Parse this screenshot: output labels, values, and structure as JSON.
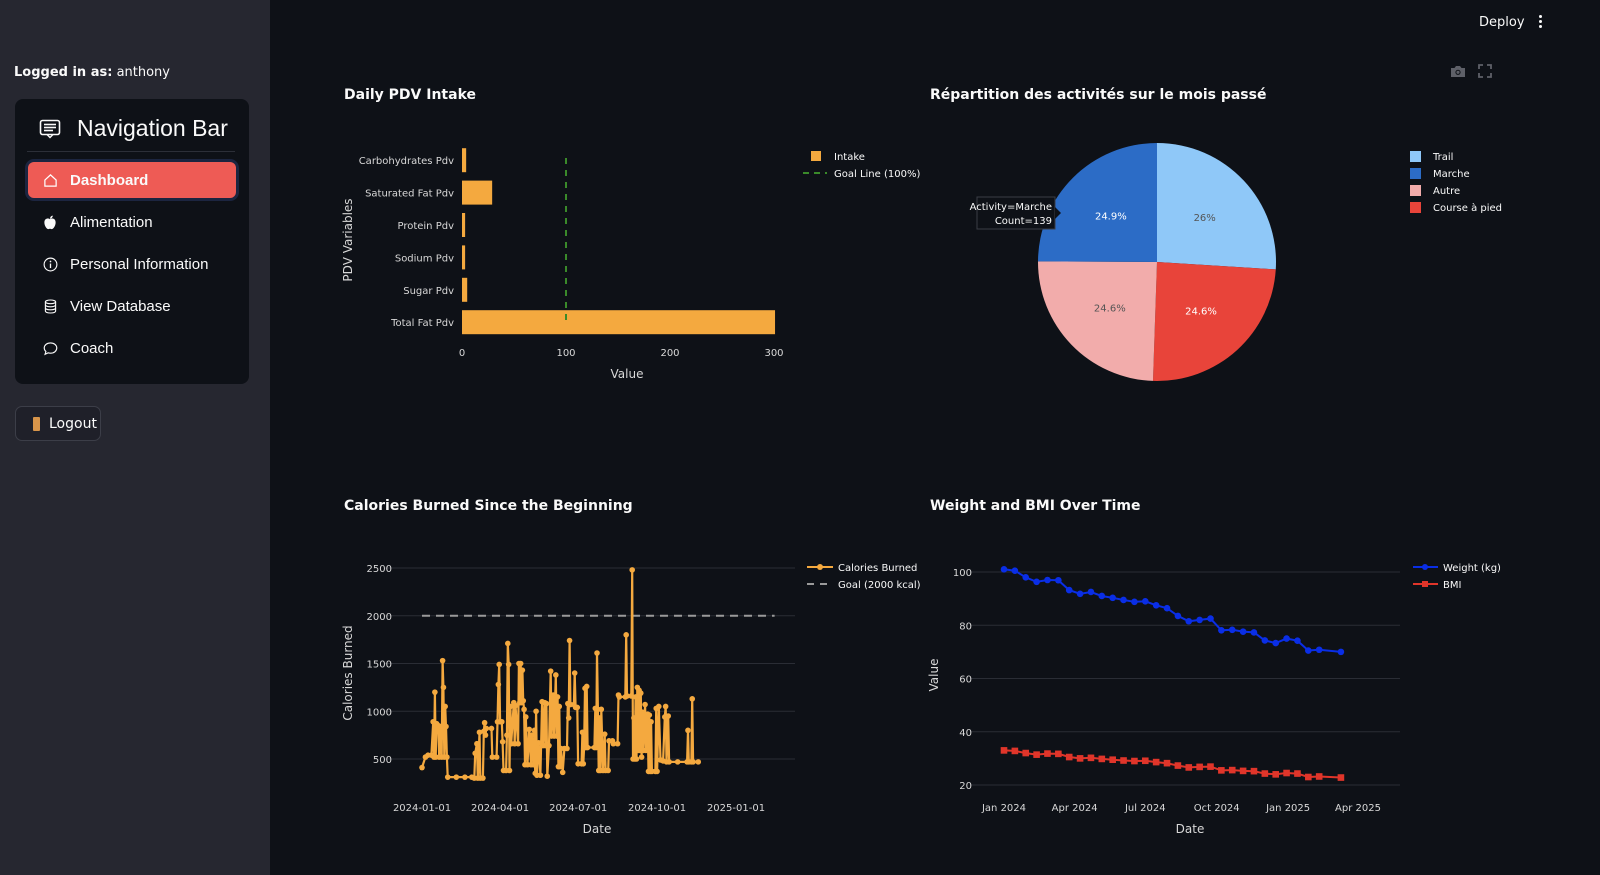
{
  "app": {
    "deploy_label": "Deploy",
    "menu_icon": "kebab-menu-icon"
  },
  "sidebar": {
    "logged_in_label": "Logged in as:",
    "username": "anthony",
    "nav_title": "Navigation Bar",
    "nav_title_icon": "newspaper-icon",
    "items": [
      {
        "label": "Dashboard",
        "icon": "house-icon",
        "active": true
      },
      {
        "label": "Alimentation",
        "icon": "apple-icon",
        "active": false
      },
      {
        "label": "Personal Information",
        "icon": "info-circle-icon",
        "active": false
      },
      {
        "label": "View Database",
        "icon": "database-icon",
        "active": false
      },
      {
        "label": "Coach",
        "icon": "chat-bubble-icon",
        "active": false
      }
    ],
    "active_color": "#ee5b55",
    "logout_label": "Logout",
    "logout_icon": "door-icon"
  },
  "modebar": {
    "icons": [
      "camera-icon",
      "fullscreen-icon"
    ]
  },
  "chart_data": [
    {
      "id": "pdv",
      "type": "bar",
      "orientation": "horizontal",
      "title": "Daily PDV Intake",
      "xlabel": "Value",
      "ylabel": "PDV Variables",
      "categories": [
        "Carbohydrates Pdv",
        "Saturated Fat Pdv",
        "Protein Pdv",
        "Sodium Pdv",
        "Sugar Pdv",
        "Total Fat Pdv"
      ],
      "values": [
        4,
        29,
        3,
        3,
        5,
        301
      ],
      "xlim": [
        0,
        310
      ],
      "xticks": [
        0,
        100,
        200,
        300
      ],
      "goal_value": 100,
      "bar_color": "#f4a93f",
      "goal_color": "#3a8a2a",
      "legend": [
        {
          "label": "Intake",
          "kind": "bar"
        },
        {
          "label": "Goal Line (100%)",
          "kind": "dash"
        }
      ],
      "legend_position": "top-right",
      "grid": false
    },
    {
      "id": "activities",
      "type": "pie",
      "title": "Répartition des activités sur le mois passé",
      "slices": [
        {
          "label": "Trail",
          "value": 145,
          "percent": "26%",
          "color": "#8fc8f8",
          "text_color": "#555555"
        },
        {
          "label": "Course à pied",
          "value": 137,
          "percent": "24.6%",
          "color": "#e8443a",
          "text_color": "#ffffff"
        },
        {
          "label": "Autre",
          "value": 137,
          "percent": "24.6%",
          "color": "#f2acab",
          "text_color": "#555555"
        },
        {
          "label": "Marche",
          "value": 139,
          "percent": "24.9%",
          "color": "#2c6cc6",
          "text_color": "#ffffff"
        }
      ],
      "legend": [
        "Trail",
        "Marche",
        "Autre",
        "Course à pied"
      ],
      "legend_position": "top-right",
      "tooltip": {
        "line1": "Activity=Marche",
        "line2": "Count=139"
      }
    },
    {
      "id": "calories",
      "type": "line",
      "title": "Calories Burned Since the Beginning",
      "xlabel": "Date",
      "ylabel": "Calories Burned",
      "xticks": [
        "2024-01-01",
        "2024-04-01",
        "2024-07-01",
        "2024-10-01",
        "2025-01-01"
      ],
      "yticks": [
        500,
        1000,
        1500,
        2000,
        2500
      ],
      "ylim": [
        230,
        2600
      ],
      "xlim": [
        "2023-12-10",
        "2025-03-15"
      ],
      "goal_value": 2000,
      "goal_range": [
        "2024-01-01",
        "2025-02-15"
      ],
      "line_color": "#f4a93f",
      "goal_color": "#9a9a9a",
      "legend": [
        {
          "label": "Calories Burned",
          "kind": "line-marker"
        },
        {
          "label": "Goal (2000 kcal)",
          "kind": "dash"
        }
      ],
      "legend_position": "top-right",
      "grid": true,
      "series": [
        {
          "name": "Calories Burned",
          "points": [
            [
              "2024-01-01",
              410
            ],
            [
              "2024-01-05",
              520
            ],
            [
              "2024-01-08",
              540
            ],
            [
              "2024-01-12",
              540
            ],
            [
              "2024-01-14",
              890
            ],
            [
              "2024-01-15",
              520
            ],
            [
              "2024-01-16",
              1200
            ],
            [
              "2024-01-17",
              520
            ],
            [
              "2024-01-18",
              870
            ],
            [
              "2024-01-20",
              850
            ],
            [
              "2024-01-21",
              520
            ],
            [
              "2024-01-22",
              840
            ],
            [
              "2024-01-24",
              520
            ],
            [
              "2024-01-25",
              1530
            ],
            [
              "2024-01-26",
              1250
            ],
            [
              "2024-01-27",
              520
            ],
            [
              "2024-01-28",
              1050
            ],
            [
              "2024-01-29",
              840
            ],
            [
              "2024-01-30",
              520
            ],
            [
              "2024-01-31",
              310
            ],
            [
              "2024-02-10",
              310
            ],
            [
              "2024-02-20",
              310
            ],
            [
              "2024-02-28",
              310
            ],
            [
              "2024-03-02",
              300
            ],
            [
              "2024-03-03",
              560
            ],
            [
              "2024-03-05",
              660
            ],
            [
              "2024-03-06",
              300
            ],
            [
              "2024-03-08",
              780
            ],
            [
              "2024-03-09",
              300
            ],
            [
              "2024-03-12",
              300
            ],
            [
              "2024-03-13",
              790
            ],
            [
              "2024-03-14",
              880
            ],
            [
              "2024-03-15",
              750
            ],
            [
              "2024-03-16",
              820
            ],
            [
              "2024-03-22",
              820
            ],
            [
              "2024-03-23",
              520
            ],
            [
              "2024-03-28",
              520
            ],
            [
              "2024-03-29",
              890
            ],
            [
              "2024-03-30",
              1280
            ],
            [
              "2024-03-31",
              1490
            ],
            [
              "2024-04-01",
              890
            ],
            [
              "2024-04-03",
              890
            ],
            [
              "2024-04-04",
              680
            ],
            [
              "2024-04-05",
              380
            ],
            [
              "2024-04-08",
              380
            ],
            [
              "2024-04-09",
              750
            ],
            [
              "2024-04-10",
              1710
            ],
            [
              "2024-04-11",
              1490
            ],
            [
              "2024-04-12",
              380
            ],
            [
              "2024-04-13",
              1050
            ],
            [
              "2024-04-14",
              660
            ],
            [
              "2024-04-17",
              1090
            ],
            [
              "2024-04-18",
              660
            ],
            [
              "2024-04-19",
              1060
            ],
            [
              "2024-04-22",
              660
            ],
            [
              "2024-04-23",
              1500
            ],
            [
              "2024-04-24",
              1090
            ],
            [
              "2024-04-25",
              1500
            ],
            [
              "2024-04-26",
              1090
            ],
            [
              "2024-04-27",
              1430
            ],
            [
              "2024-04-28",
              1110
            ],
            [
              "2024-04-29",
              1020
            ],
            [
              "2024-04-30",
              440
            ],
            [
              "2024-05-01",
              940
            ],
            [
              "2024-05-03",
              440
            ],
            [
              "2024-05-05",
              810
            ],
            [
              "2024-05-07",
              440
            ],
            [
              "2024-05-08",
              750
            ],
            [
              "2024-05-10",
              440
            ],
            [
              "2024-05-11",
              800
            ],
            [
              "2024-05-12",
              350
            ],
            [
              "2024-05-13",
              1000
            ],
            [
              "2024-05-14",
              330
            ],
            [
              "2024-05-16",
              670
            ],
            [
              "2024-05-18",
              330
            ],
            [
              "2024-05-20",
              1100
            ],
            [
              "2024-05-21",
              640
            ],
            [
              "2024-05-23",
              1090
            ],
            [
              "2024-05-24",
              640
            ],
            [
              "2024-05-25",
              1080
            ],
            [
              "2024-05-26",
              320
            ],
            [
              "2024-05-28",
              640
            ],
            [
              "2024-05-30",
              1420
            ],
            [
              "2024-05-31",
              740
            ],
            [
              "2024-06-02",
              1170
            ],
            [
              "2024-06-03",
              740
            ],
            [
              "2024-06-05",
              1380
            ],
            [
              "2024-06-06",
              740
            ],
            [
              "2024-06-07",
              1150
            ],
            [
              "2024-06-08",
              420
            ],
            [
              "2024-06-09",
              1050
            ],
            [
              "2024-06-10",
              420
            ],
            [
              "2024-06-11",
              610
            ],
            [
              "2024-06-13",
              360
            ],
            [
              "2024-06-15",
              610
            ],
            [
              "2024-06-18",
              610
            ],
            [
              "2024-06-19",
              1080
            ],
            [
              "2024-06-20",
              930
            ],
            [
              "2024-06-21",
              1740
            ],
            [
              "2024-06-22",
              1070
            ],
            [
              "2024-06-26",
              1070
            ],
            [
              "2024-06-27",
              1400
            ],
            [
              "2024-06-28",
              1040
            ],
            [
              "2024-06-30",
              1040
            ],
            [
              "2024-07-01",
              450
            ],
            [
              "2024-07-05",
              450
            ],
            [
              "2024-07-06",
              780
            ],
            [
              "2024-07-07",
              450
            ],
            [
              "2024-07-08",
              620
            ],
            [
              "2024-07-09",
              1240
            ],
            [
              "2024-07-10",
              620
            ],
            [
              "2024-07-11",
              1260
            ],
            [
              "2024-07-12",
              620
            ],
            [
              "2024-07-20",
              620
            ],
            [
              "2024-07-21",
              1030
            ],
            [
              "2024-07-22",
              620
            ],
            [
              "2024-07-23",
              1610
            ],
            [
              "2024-07-24",
              1020
            ],
            [
              "2024-07-25",
              380
            ],
            [
              "2024-07-26",
              930
            ],
            [
              "2024-07-27",
              380
            ],
            [
              "2024-07-28",
              1020
            ],
            [
              "2024-07-30",
              380
            ],
            [
              "2024-08-01",
              760
            ],
            [
              "2024-08-02",
              380
            ],
            [
              "2024-08-05",
              380
            ],
            [
              "2024-08-06",
              690
            ],
            [
              "2024-08-10",
              690
            ],
            [
              "2024-08-11",
              660
            ],
            [
              "2024-08-16",
              660
            ],
            [
              "2024-08-17",
              1170
            ],
            [
              "2024-08-18",
              1150
            ],
            [
              "2024-08-25",
              1150
            ],
            [
              "2024-08-26",
              1800
            ],
            [
              "2024-08-27",
              1160
            ],
            [
              "2024-09-01",
              1160
            ],
            [
              "2024-09-02",
              2480
            ],
            [
              "2024-09-03",
              500
            ],
            [
              "2024-09-04",
              930
            ],
            [
              "2024-09-05",
              500
            ],
            [
              "2024-09-06",
              1150
            ],
            [
              "2024-09-07",
              500
            ],
            [
              "2024-09-08",
              1250
            ],
            [
              "2024-09-09",
              590
            ],
            [
              "2024-09-10",
              1220
            ],
            [
              "2024-09-11",
              590
            ],
            [
              "2024-09-12",
              1190
            ],
            [
              "2024-09-13",
              520
            ],
            [
              "2024-09-14",
              990
            ],
            [
              "2024-09-15",
              590
            ],
            [
              "2024-09-17",
              1070
            ],
            [
              "2024-09-18",
              590
            ],
            [
              "2024-09-20",
              970
            ],
            [
              "2024-09-21",
              370
            ],
            [
              "2024-09-22",
              960
            ],
            [
              "2024-09-23",
              370
            ],
            [
              "2024-09-24",
              890
            ],
            [
              "2024-09-25",
              370
            ],
            [
              "2024-09-29",
              370
            ],
            [
              "2024-09-30",
              1030
            ],
            [
              "2024-10-01",
              370
            ],
            [
              "2024-10-03",
              1050
            ],
            [
              "2024-10-05",
              490
            ],
            [
              "2024-10-08",
              480
            ],
            [
              "2024-10-10",
              940
            ],
            [
              "2024-10-11",
              1050
            ],
            [
              "2024-10-12",
              470
            ],
            [
              "2024-10-14",
              950
            ],
            [
              "2024-10-15",
              470
            ],
            [
              "2024-10-25",
              470
            ],
            [
              "2024-11-05",
              470
            ],
            [
              "2024-11-06",
              800
            ],
            [
              "2024-11-07",
              470
            ],
            [
              "2024-11-10",
              470
            ],
            [
              "2024-11-11",
              1130
            ],
            [
              "2024-11-12",
              470
            ],
            [
              "2024-11-18",
              470
            ]
          ]
        }
      ]
    },
    {
      "id": "weight_bmi",
      "type": "line",
      "title": "Weight and BMI Over Time",
      "xlabel": "Date",
      "ylabel": "Value",
      "xticks": [
        "Jan 2024",
        "Apr 2024",
        "Jul 2024",
        "Oct 2024",
        "Jan 2025",
        "Apr 2025"
      ],
      "yticks": [
        20,
        40,
        60,
        80,
        100
      ],
      "ylim": [
        17,
        106
      ],
      "grid": true,
      "legend_position": "top-right",
      "series": [
        {
          "name": "Weight (kg)",
          "color": "#0a2ee6",
          "marker": "circle",
          "values": [
            101,
            100.5,
            98,
            96.3,
            97,
            96.9,
            93.2,
            91.8,
            92.5,
            91,
            90.3,
            89.5,
            88.8,
            89,
            87.5,
            86.4,
            83.5,
            81.5,
            82,
            82.5,
            78.1,
            78.3,
            77.6,
            77.3,
            74.3,
            73.3,
            75,
            74.2,
            70.5,
            70.8,
            70
          ]
        },
        {
          "name": "BMI",
          "color": "#e0352a",
          "marker": "square",
          "values": [
            33,
            32.8,
            32,
            31.4,
            31.8,
            31.7,
            30.5,
            30,
            30.2,
            29.8,
            29.5,
            29.2,
            29,
            29.1,
            28.6,
            28.2,
            27.3,
            26.6,
            26.8,
            26.9,
            25.5,
            25.6,
            25.3,
            25.2,
            24.3,
            24,
            24.5,
            24.3,
            23,
            23.2,
            22.8
          ]
        }
      ],
      "x_dates": [
        "2024-01-01",
        "2024-01-15",
        "2024-01-29",
        "2024-02-12",
        "2024-02-26",
        "2024-03-11",
        "2024-03-25",
        "2024-04-08",
        "2024-04-22",
        "2024-05-06",
        "2024-05-20",
        "2024-06-03",
        "2024-06-17",
        "2024-07-01",
        "2024-07-15",
        "2024-07-29",
        "2024-08-12",
        "2024-08-26",
        "2024-09-09",
        "2024-09-23",
        "2024-10-07",
        "2024-10-21",
        "2024-11-04",
        "2024-11-18",
        "2024-12-02",
        "2024-12-16",
        "2024-12-30",
        "2025-01-13",
        "2025-01-27",
        "2025-02-10",
        "2025-03-10"
      ]
    }
  ]
}
